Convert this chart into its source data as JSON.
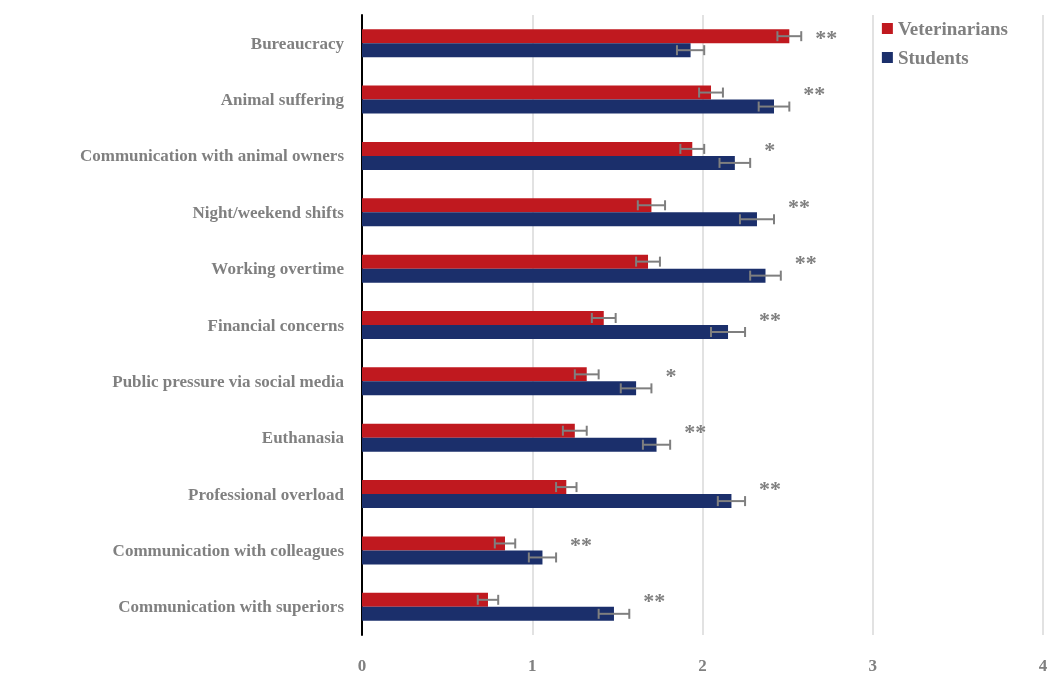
{
  "chart_data": {
    "type": "bar",
    "orientation": "horizontal",
    "categories": [
      "Bureaucracy",
      "Animal suffering",
      "Communication with animal owners",
      "Night/weekend shifts",
      "Working overtime",
      "Financial concerns",
      "Public pressure via social media",
      "Euthanasia",
      "Professional overload",
      "Communication with colleagues",
      "Communication with superiors"
    ],
    "series": [
      {
        "name": "Veterinarians",
        "color": "#c0191f",
        "values": [
          2.51,
          2.05,
          1.94,
          1.7,
          1.68,
          1.42,
          1.32,
          1.25,
          1.2,
          0.84,
          0.74
        ],
        "errors": [
          0.07,
          0.07,
          0.07,
          0.08,
          0.07,
          0.07,
          0.07,
          0.07,
          0.06,
          0.06,
          0.06
        ]
      },
      {
        "name": "Students",
        "color": "#1b2f6b",
        "values": [
          1.93,
          2.42,
          2.19,
          2.32,
          2.37,
          2.15,
          1.61,
          1.73,
          2.17,
          1.06,
          1.48
        ],
        "errors": [
          0.08,
          0.09,
          0.09,
          0.1,
          0.09,
          0.1,
          0.09,
          0.08,
          0.08,
          0.08,
          0.09
        ]
      }
    ],
    "xlim": [
      0,
      4
    ],
    "xticks": [
      0,
      1,
      2,
      3,
      4
    ],
    "grid": "x",
    "legend": "top right",
    "annotations": [
      "**",
      "**",
      "*",
      "**",
      "**",
      "**",
      "*",
      "**",
      "**",
      "**",
      "**"
    ]
  }
}
